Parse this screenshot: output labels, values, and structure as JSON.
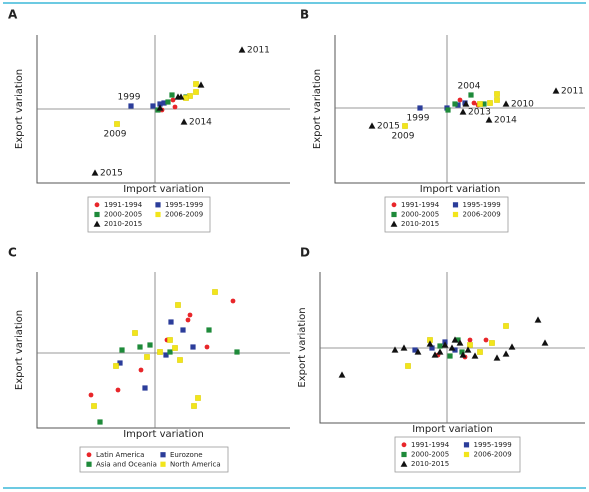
{
  "chart_data": [
    {
      "type": "scatter",
      "label": "A",
      "xlabel": "Import variation",
      "ylabel": "Export variation",
      "xlim": [
        -118,
        135
      ],
      "ylim": [
        -74,
        74
      ],
      "series": [
        {
          "name": "1991-1994",
          "color": "#e8262a",
          "marker": "circle",
          "x": [
            20,
            18,
            7
          ],
          "values": [
            2,
            9,
            -1
          ]
        },
        {
          "name": "1995-1999",
          "color": "#2b3d9a",
          "marker": "square",
          "x": [
            -24,
            -2,
            5,
            9
          ],
          "values": [
            3,
            3,
            5,
            6
          ],
          "point_labels": [
            "1999",
            null,
            null,
            null
          ]
        },
        {
          "name": "2000-2005",
          "color": "#1e8a3a",
          "marker": "square",
          "x": [
            17,
            13,
            3,
            31
          ],
          "values": [
            14,
            7,
            -1,
            12
          ]
        },
        {
          "name": "2006-2009",
          "color": "#f2e51b",
          "marker": "square",
          "x": [
            -38,
            41,
            41,
            35,
            31
          ],
          "values": [
            -15,
            25,
            17,
            13,
            11
          ],
          "point_labels": [
            "2009",
            null,
            null,
            null,
            null
          ]
        },
        {
          "name": "2010-2015",
          "color": "#111111",
          "marker": "triangle",
          "x": [
            87,
            -60,
            29,
            46,
            23,
            26,
            5
          ],
          "values": [
            59,
            -64,
            -13,
            24,
            12,
            12,
            1
          ],
          "point_labels": [
            "2011",
            "2015",
            "2014",
            null,
            null,
            null,
            null
          ]
        }
      ]
    },
    {
      "type": "scatter",
      "label": "B",
      "xlabel": "Import variation",
      "ylabel": "Export variation",
      "xlim": [
        -112,
        138
      ],
      "ylim": [
        -75,
        73
      ],
      "series": [
        {
          "name": "1991-1994",
          "color": "#e8262a",
          "marker": "circle",
          "x": [
            31,
            13,
            27
          ],
          "values": [
            3,
            8,
            5
          ]
        },
        {
          "name": "1995-1999",
          "color": "#2b3d9a",
          "marker": "square",
          "x": [
            -27,
            0,
            11,
            18
          ],
          "values": [
            0,
            0,
            3,
            5
          ],
          "point_labels": [
            "1999",
            null,
            null,
            null
          ]
        },
        {
          "name": "2000-2005",
          "color": "#1e8a3a",
          "marker": "square",
          "x": [
            24,
            8,
            37,
            1
          ],
          "values": [
            13,
            4,
            4,
            -2
          ],
          "point_labels": [
            "2004",
            null,
            null,
            null
          ]
        },
        {
          "name": "2006-2009",
          "color": "#f2e51b",
          "marker": "square",
          "x": [
            -42,
            50,
            50,
            43,
            33
          ],
          "values": [
            -18,
            14,
            8,
            5,
            4
          ],
          "point_labels": [
            "2009",
            null,
            null,
            null,
            null
          ]
        },
        {
          "name": "2010-2015",
          "color": "#111111",
          "marker": "triangle",
          "x": [
            109,
            -75,
            59,
            42,
            16,
            19
          ],
          "values": [
            17,
            -18,
            4,
            -12,
            -4,
            4
          ],
          "point_labels": [
            "2011",
            "2015",
            "2010",
            "2014",
            "2013",
            null
          ]
        }
      ]
    },
    {
      "type": "scatter",
      "label": "C",
      "xlabel": "Import variation",
      "ylabel": "Export variation",
      "xlim": [
        -118,
        135
      ],
      "ylim": [
        -75,
        81
      ],
      "series": [
        {
          "name": "Latin America",
          "color": "#e8262a",
          "marker": "circle",
          "x": [
            78,
            -64,
            -37,
            52,
            12,
            35,
            -14,
            33
          ],
          "values": [
            52,
            -42,
            -37,
            6,
            13,
            38,
            -17,
            33
          ]
        },
        {
          "name": "Eurozone",
          "color": "#2b3d9a",
          "marker": "square",
          "x": [
            -10,
            28,
            16,
            -35,
            38,
            11
          ],
          "values": [
            -35,
            23,
            31,
            -10,
            6,
            -2
          ]
        },
        {
          "name": "Asia and Oceania",
          "color": "#1e8a3a",
          "marker": "square",
          "x": [
            -55,
            54,
            82,
            -33,
            15,
            -15,
            -5
          ],
          "values": [
            -69,
            23,
            1,
            3,
            1,
            6,
            8
          ]
        },
        {
          "name": "North America",
          "color": "#f2e51b",
          "marker": "square",
          "x": [
            60,
            23,
            -61,
            43,
            39,
            -20,
            15,
            20,
            5,
            -8,
            25,
            -39
          ],
          "values": [
            61,
            48,
            -53,
            -45,
            -53,
            20,
            13,
            5,
            1,
            -4,
            -7,
            -13
          ]
        }
      ]
    },
    {
      "type": "scatter",
      "label": "D",
      "xlabel": "Import variation",
      "ylabel": "Export variation",
      "xlim": [
        -127,
        138
      ],
      "ylim": [
        -75,
        76
      ],
      "series": [
        {
          "name": "1991-1994",
          "color": "#e8262a",
          "marker": "circle",
          "x": [
            39,
            23,
            18,
            -9
          ],
          "values": [
            8,
            8,
            -9,
            -7
          ]
        },
        {
          "name": "1995-1999",
          "color": "#2b3d9a",
          "marker": "square",
          "x": [
            -32,
            -15,
            -2,
            8
          ],
          "values": [
            -2,
            0,
            6,
            -2
          ]
        },
        {
          "name": "2000-2005",
          "color": "#1e8a3a",
          "marker": "square",
          "x": [
            11,
            -7,
            15,
            3
          ],
          "values": [
            8,
            2,
            -4,
            -8
          ]
        },
        {
          "name": "2006-2009",
          "color": "#f2e51b",
          "marker": "square",
          "x": [
            59,
            -39,
            45,
            23,
            33,
            -17
          ],
          "values": [
            22,
            -18,
            5,
            3,
            -4,
            8
          ]
        },
        {
          "name": "2010-2015",
          "color": "#111111",
          "marker": "triangle",
          "x": [
            91,
            98,
            -105,
            -52,
            65,
            59,
            50,
            16,
            5,
            -2,
            -7,
            -17,
            13,
            21,
            -29,
            28,
            8,
            -12,
            -43
          ],
          "values": [
            28,
            5,
            -27,
            -2,
            1,
            -6,
            -10,
            -7,
            0,
            3,
            -4,
            4,
            5,
            -2,
            -4,
            -8,
            8,
            -7,
            0
          ]
        }
      ]
    }
  ]
}
